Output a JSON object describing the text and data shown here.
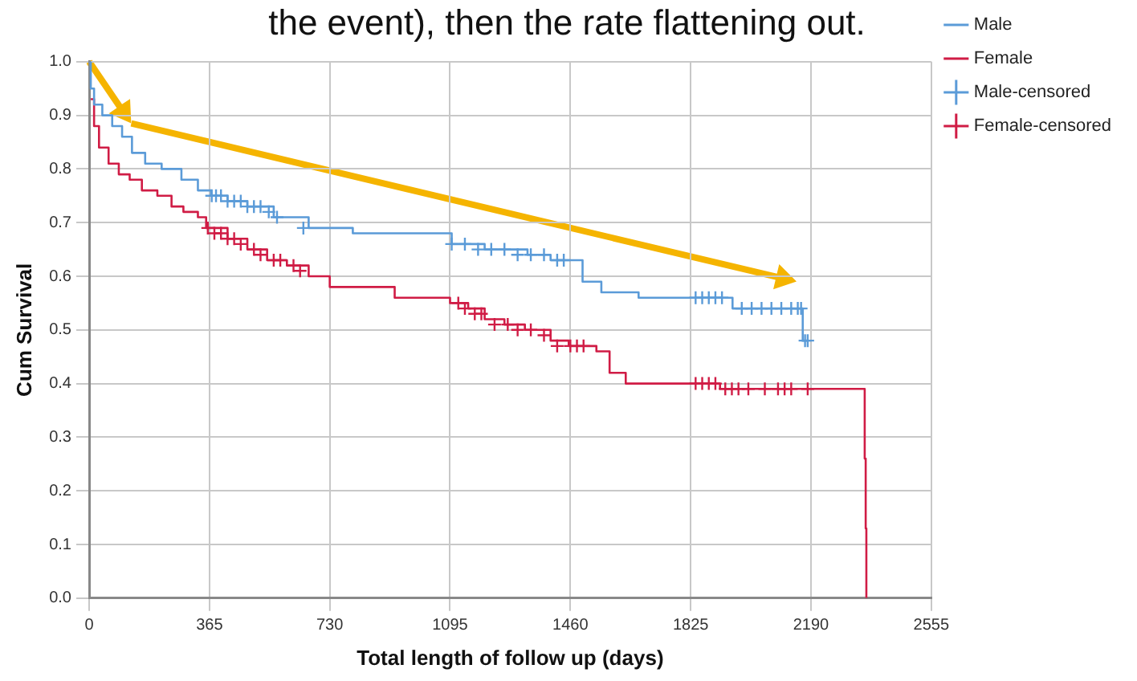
{
  "chart_data": {
    "type": "step",
    "title": "the event), then the rate flattening out.",
    "xlabel": "Total length of follow up (days)",
    "ylabel": "Cum Survival",
    "xlim": [
      0,
      2555
    ],
    "xticks": [
      0,
      365,
      730,
      1095,
      1460,
      1825,
      2190,
      2555
    ],
    "ylim": [
      0,
      1
    ],
    "yticks": [
      {
        "value": 0,
        "label": "0.0"
      },
      0.1,
      0.2,
      0.3,
      0.4,
      0.5,
      0.6,
      0.7,
      0.8,
      0.9,
      {
        "value": 1,
        "label": "1.0"
      }
    ],
    "grid": true,
    "legend": "top right",
    "marker": "none",
    "line_style": "solid",
    "series": [
      {
        "name": "Male",
        "color": "#5b9bd8",
        "x": [
          0,
          5,
          15,
          40,
          70,
          100,
          130,
          170,
          220,
          280,
          330,
          370,
          420,
          480,
          560,
          666,
          800,
          1100,
          1200,
          1330,
          1400,
          1497,
          1554,
          1667,
          1952,
          2165,
          2180
        ],
        "values": [
          1.0,
          0.95,
          0.92,
          0.9,
          0.88,
          0.86,
          0.83,
          0.81,
          0.8,
          0.78,
          0.76,
          0.75,
          0.74,
          0.73,
          0.71,
          0.69,
          0.68,
          0.66,
          0.65,
          0.64,
          0.63,
          0.59,
          0.57,
          0.56,
          0.54,
          0.48,
          0.48
        ]
      },
      {
        "name": "Female",
        "color": "#d01c45",
        "x": [
          5,
          15,
          30,
          59,
          90,
          123,
          160,
          207,
          250,
          286,
          330,
          355,
          420,
          480,
          540,
          600,
          666,
          730,
          927,
          1095,
          1150,
          1200,
          1260,
          1322,
          1400,
          1455,
          1539,
          1579,
          1628,
          1914,
          2353,
          2356,
          2358
        ],
        "values": [
          0.93,
          0.88,
          0.84,
          0.81,
          0.79,
          0.78,
          0.76,
          0.75,
          0.73,
          0.72,
          0.71,
          0.69,
          0.67,
          0.65,
          0.63,
          0.62,
          0.6,
          0.58,
          0.56,
          0.55,
          0.54,
          0.52,
          0.51,
          0.5,
          0.48,
          0.47,
          0.46,
          0.42,
          0.4,
          0.39,
          0.26,
          0.13,
          0.0
        ]
      },
      {
        "name": "Male-censored",
        "type": "scatter",
        "marker": "cross",
        "color": "#5b9bd8",
        "x": [
          372,
          385,
          400,
          420,
          440,
          460,
          480,
          500,
          520,
          545,
          570,
          650,
          1100,
          1140,
          1180,
          1220,
          1260,
          1300,
          1340,
          1380,
          1420,
          1440,
          1840,
          1860,
          1880,
          1900,
          1920,
          1980,
          2010,
          2040,
          2070,
          2100,
          2130,
          2150,
          2160,
          2172,
          2180
        ],
        "values": [
          0.75,
          0.75,
          0.75,
          0.74,
          0.74,
          0.74,
          0.73,
          0.73,
          0.73,
          0.72,
          0.71,
          0.69,
          0.66,
          0.66,
          0.65,
          0.65,
          0.65,
          0.64,
          0.64,
          0.64,
          0.63,
          0.63,
          0.56,
          0.56,
          0.56,
          0.56,
          0.56,
          0.54,
          0.54,
          0.54,
          0.54,
          0.54,
          0.54,
          0.54,
          0.54,
          0.48,
          0.48
        ]
      },
      {
        "name": "Female-censored",
        "type": "scatter",
        "marker": "cross",
        "color": "#d01c45",
        "x": [
          360,
          380,
          400,
          420,
          440,
          460,
          500,
          520,
          560,
          580,
          620,
          640,
          1120,
          1140,
          1170,
          1190,
          1230,
          1270,
          1300,
          1340,
          1380,
          1420,
          1460,
          1480,
          1500,
          1840,
          1860,
          1880,
          1900,
          1930,
          1950,
          1970,
          2000,
          2050,
          2090,
          2110,
          2130,
          2180
        ],
        "values": [
          0.69,
          0.68,
          0.68,
          0.67,
          0.67,
          0.66,
          0.65,
          0.64,
          0.63,
          0.63,
          0.62,
          0.61,
          0.55,
          0.54,
          0.53,
          0.53,
          0.51,
          0.51,
          0.5,
          0.5,
          0.49,
          0.47,
          0.47,
          0.47,
          0.47,
          0.4,
          0.4,
          0.4,
          0.4,
          0.39,
          0.39,
          0.39,
          0.39,
          0.39,
          0.39,
          0.39,
          0.39,
          0.39
        ]
      }
    ]
  }
}
